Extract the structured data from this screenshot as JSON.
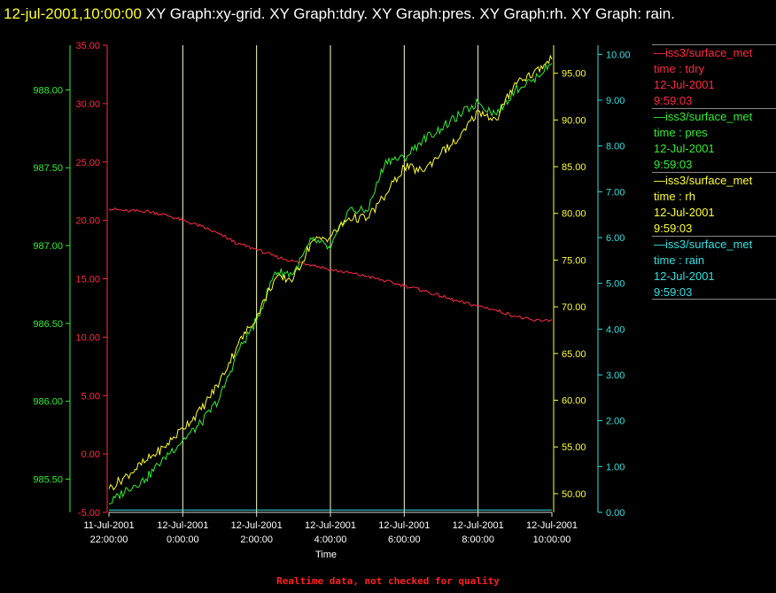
{
  "header": {
    "timestamp": "12-jul-2001,10:00:00",
    "title_rest": " XY Graph:xy-grid.  XY Graph:tdry.  XY Graph:pres.  XY Graph:rh.  XY Graph: rain."
  },
  "footer": {
    "text": "Realtime data, not checked for quality"
  },
  "colors": {
    "tdry": "#ff2a40",
    "pres": "#33ee33",
    "rh": "#ffff33",
    "rain": "#33e0e0",
    "grid": "#ffffcc"
  },
  "legend": [
    {
      "source": "iss3/surface_met",
      "var": "time : tdry",
      "date": "12-Jul-2001",
      "time": "9:59:03"
    },
    {
      "source": "iss3/surface_met",
      "var": "time : pres",
      "date": "12-Jul-2001",
      "time": "9:59:03"
    },
    {
      "source": "iss3/surface_met",
      "var": "time : rh",
      "date": "12-Jul-2001",
      "time": "9:59:03"
    },
    {
      "source": "iss3/surface_met",
      "var": "time : rain",
      "date": "12-Jul-2001",
      "time": "9:59:03"
    }
  ],
  "chart_data": {
    "type": "line",
    "xlabel": "Time",
    "x_ticks": [
      [
        "11-Jul-2001",
        "22:00:00"
      ],
      [
        "12-Jul-2001",
        "0:00:00"
      ],
      [
        "12-Jul-2001",
        "2:00:00"
      ],
      [
        "12-Jul-2001",
        "4:00:00"
      ],
      [
        "12-Jul-2001",
        "6:00:00"
      ],
      [
        "12-Jul-2001",
        "8:00:00"
      ],
      [
        "12-Jul-2001",
        "10:00:00"
      ]
    ],
    "xlim": [
      "11-Jul-2001 22:00:00",
      "12-Jul-2001 10:00:00"
    ],
    "grid": "vertical",
    "axes": {
      "tdry": {
        "side": "left-outer",
        "ylim": [
          -5,
          35
        ],
        "ticks": [
          "-5.00",
          "0.00",
          "5.00",
          "10.00",
          "15.00",
          "20.00",
          "25.00",
          "30.00",
          "35.00"
        ]
      },
      "pres": {
        "side": "left-inner",
        "ylim": [
          985.2868,
          988.2868
        ],
        "ticks": [
          "985.50",
          "986.00",
          "986.50",
          "987.00",
          "987.50",
          "988.00"
        ]
      },
      "rh": {
        "side": "right-inner",
        "ylim": [
          48.0,
          98.0
        ],
        "ticks": [
          "50.00",
          "55.00",
          "60.00",
          "65.00",
          "70.00",
          "75.00",
          "80.00",
          "85.00",
          "90.00",
          "95.00"
        ]
      },
      "rain": {
        "side": "right-outer",
        "ylim": [
          0,
          10.2
        ],
        "ticks": [
          "0.00",
          "1.00",
          "2.00",
          "3.00",
          "4.00",
          "5.00",
          "6.00",
          "7.00",
          "8.00",
          "9.00",
          "10.00"
        ]
      }
    },
    "hours": [
      0,
      0.5,
      1,
      1.5,
      2,
      2.5,
      3,
      3.5,
      4,
      4.5,
      5,
      5.5,
      6,
      6.5,
      7,
      7.5,
      8,
      8.5,
      9,
      9.5,
      10,
      10.5,
      11,
      11.5,
      12
    ],
    "series": [
      {
        "name": "tdry",
        "values": [
          21.0,
          20.8,
          20.8,
          20.5,
          20.0,
          19.5,
          18.8,
          18.0,
          17.5,
          16.9,
          16.5,
          16.2,
          15.8,
          15.5,
          15.2,
          14.8,
          14.4,
          14.0,
          13.5,
          13.0,
          12.7,
          12.3,
          11.8,
          11.4,
          11.5
        ]
      },
      {
        "name": "pres",
        "values": [
          985.34,
          985.44,
          985.5,
          985.64,
          985.75,
          985.86,
          986.02,
          986.32,
          986.52,
          986.83,
          986.82,
          987.04,
          986.98,
          987.23,
          987.22,
          987.55,
          987.56,
          987.68,
          987.75,
          987.84,
          987.92,
          987.84,
          988.0,
          988.07,
          988.17
        ]
      },
      {
        "name": "rh",
        "values": [
          50.5,
          52.0,
          53.5,
          55.0,
          57.0,
          59.0,
          62.0,
          66.0,
          69.0,
          73.0,
          73.0,
          77.0,
          77.5,
          79.5,
          79.5,
          82.0,
          85.0,
          84.5,
          86.5,
          88.0,
          91.0,
          90.0,
          94.0,
          95.0,
          96.5
        ]
      },
      {
        "name": "rain",
        "values": [
          0.05,
          0.05,
          0.05,
          0.05,
          0.05,
          0.05,
          0.05,
          0.05,
          0.05,
          0.05,
          0.05,
          0.05,
          0.05,
          0.05,
          0.05,
          0.05,
          0.05,
          0.05,
          0.05,
          0.05,
          0.05,
          0.05,
          0.05,
          0.05,
          0.05
        ]
      }
    ]
  }
}
